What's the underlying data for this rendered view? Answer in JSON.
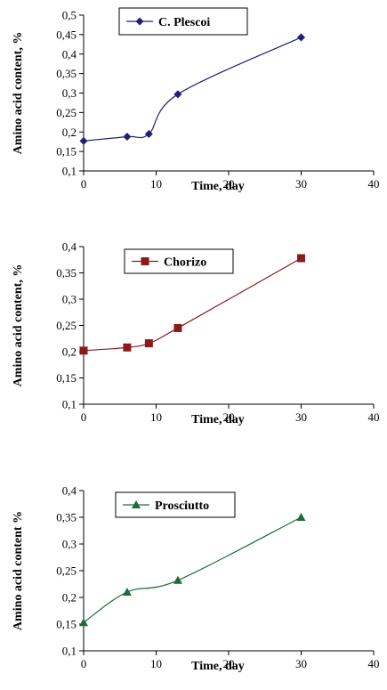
{
  "chart_data": [
    {
      "type": "line",
      "xlabel": "Time, day",
      "ylabel": "Amino acid content, %",
      "xlim": [
        0,
        40
      ],
      "ylim": [
        0.1,
        0.5
      ],
      "xticks": [
        0,
        10,
        20,
        30,
        40
      ],
      "yticks": [
        "0,1",
        "0,15",
        "0,2",
        "0,25",
        "0,3",
        "0,35",
        "0,4",
        "0,45",
        "0,5"
      ],
      "xtick_labels": [
        "0",
        "10",
        "20",
        "30",
        "40"
      ],
      "grid": false,
      "legend_position": "top-left",
      "series": [
        {
          "name": "C. Plescoi",
          "color": "#1f1f7a",
          "marker": "diamond",
          "x": [
            0,
            6,
            9,
            13,
            30
          ],
          "y": [
            0.177,
            0.188,
            0.195,
            0.297,
            0.443
          ]
        }
      ]
    },
    {
      "type": "line",
      "xlabel": "Time, day",
      "ylabel": "Amino acid content, %",
      "xlim": [
        0,
        40
      ],
      "ylim": [
        0.1,
        0.4
      ],
      "xticks": [
        0,
        10,
        20,
        30,
        40
      ],
      "yticks": [
        "0,1",
        "0,15",
        "0,2",
        "0,25",
        "0,3",
        "0,35",
        "0,4"
      ],
      "xtick_labels": [
        "0",
        "10",
        "20",
        "30",
        "40"
      ],
      "grid": false,
      "legend_position": "top-left",
      "series": [
        {
          "name": "Chorizo",
          "color": "#8b1a1a",
          "marker": "square",
          "x": [
            0,
            6,
            9,
            13,
            30
          ],
          "y": [
            0.202,
            0.208,
            0.216,
            0.245,
            0.378
          ]
        }
      ]
    },
    {
      "type": "line",
      "xlabel": "Time, day",
      "ylabel": "Amino acid content %",
      "xlim": [
        0,
        40
      ],
      "ylim": [
        0.1,
        0.4
      ],
      "xticks": [
        0,
        10,
        20,
        30,
        40
      ],
      "yticks": [
        "0,1",
        "0,15",
        "0,2",
        "0,25",
        "0,3",
        "0,35",
        "0,4"
      ],
      "xtick_labels": [
        "0",
        "10",
        "20",
        "30",
        "40"
      ],
      "grid": false,
      "legend_position": "top-left",
      "series": [
        {
          "name": "Prosciutto",
          "color": "#1e6b3a",
          "marker": "triangle",
          "x": [
            0,
            6,
            13,
            30
          ],
          "y": [
            0.153,
            0.21,
            0.232,
            0.35
          ]
        }
      ]
    }
  ]
}
